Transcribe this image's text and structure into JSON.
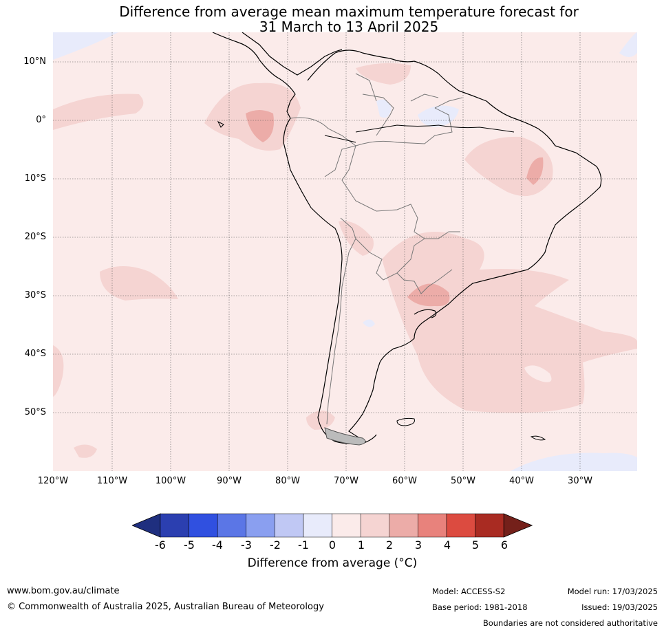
{
  "title": {
    "line1": "Difference from average mean maximum temperature forecast for",
    "line2": "31 March to 13 April 2025"
  },
  "map": {
    "region": "South America",
    "lat_labels": [
      "10°N",
      "0°",
      "10°S",
      "20°S",
      "30°S",
      "40°S",
      "50°S"
    ],
    "lon_labels": [
      "120°W",
      "110°W",
      "100°W",
      "90°W",
      "80°W",
      "70°W",
      "60°W",
      "50°W",
      "40°W",
      "30°W"
    ],
    "gridlines": true,
    "lat_range": [
      -60,
      15
    ],
    "lon_range": [
      -120,
      -20
    ]
  },
  "colorbar": {
    "tick_labels": [
      "-6",
      "-5",
      "-4",
      "-3",
      "-2",
      "-1",
      "0",
      "1",
      "2",
      "3",
      "4",
      "5",
      "6"
    ],
    "colors": [
      "#1f2f7f",
      "#2b3fb0",
      "#3050e0",
      "#5b76e6",
      "#8a9ff0",
      "#c0c8f4",
      "#e8ebfb",
      "#fbebea",
      "#f5d4d2",
      "#ecaca8",
      "#e8827c",
      "#dc4b40",
      "#a92b22",
      "#74201a"
    ],
    "extend": "both",
    "label": "Difference from average (°C)"
  },
  "footer": {
    "website": "www.bom.gov.au/climate",
    "copyright": "© Commonwealth of Australia 2025, Australian Bureau of Meteorology",
    "model": "Model: ACCESS-S2",
    "base_period": "Base period: 1981-2018",
    "model_run": "Model run: 17/03/2025",
    "issued": "Issued: 19/03/2025",
    "disclaimer": "Boundaries are not considered authoritative"
  }
}
